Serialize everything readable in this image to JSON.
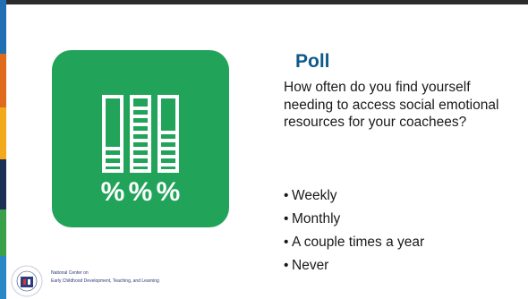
{
  "slide": {
    "title": "Poll",
    "question": "How often do you find yourself needing to access social emotional resources for your coachees?",
    "options": [
      "Weekly",
      "Monthly",
      "A couple times a year",
      "Never"
    ]
  },
  "icon": {
    "name": "poll-icon",
    "background": "#21a35a",
    "symbols": [
      "%",
      "%",
      "%"
    ]
  },
  "footer": {
    "org_line1": "National Center on",
    "org_line2": "Early Childhood Development, Teaching, and Learning"
  },
  "colors": {
    "title": "#0e5a8a",
    "accent_stripes": [
      "#1f6fb2",
      "#e06a1b",
      "#f2a91c",
      "#1e2f55",
      "#3aa04a",
      "#2b86c5"
    ]
  }
}
